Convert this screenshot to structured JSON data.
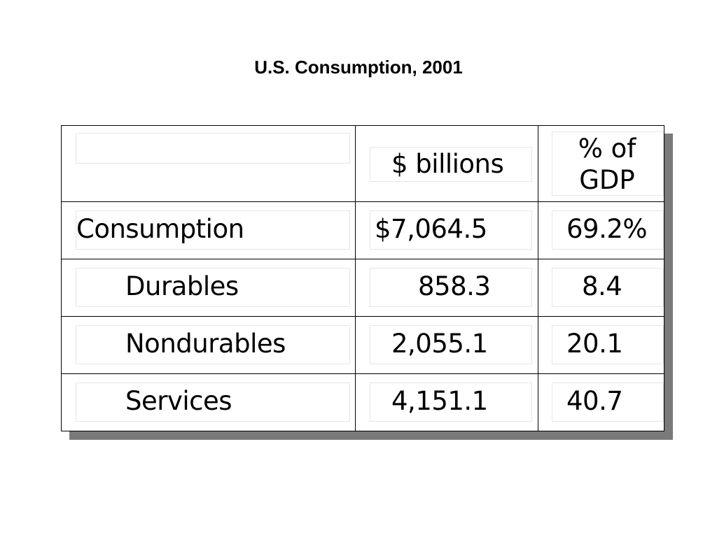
{
  "title": "U.S. Consumption, 2001",
  "table": {
    "headers": {
      "label": "",
      "billions": "$ billions",
      "pct_line1": "% of",
      "pct_line2": "GDP"
    },
    "rows": [
      {
        "label": "Consumption",
        "billions": "$7,064.5",
        "pct": "69.2%"
      },
      {
        "label": "Durables",
        "billions": "858.3",
        "pct": "8.4"
      },
      {
        "label": "Nondurables",
        "billions": "2,055.1",
        "pct": "20.1"
      },
      {
        "label": "Services",
        "billions": "4,151.1",
        "pct": "40.7"
      }
    ]
  }
}
